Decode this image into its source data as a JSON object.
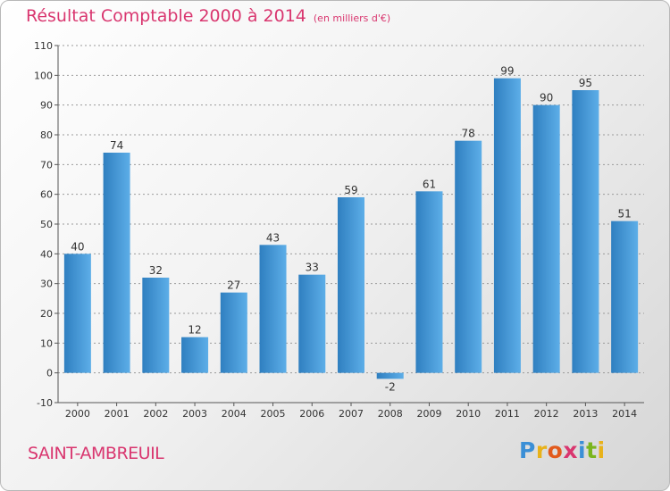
{
  "title": {
    "main": "Résultat Comptable 2000 à 2014",
    "unit": "(en milliers d'€)"
  },
  "town": "SAINT-AMBREUIL",
  "brand": {
    "letters": [
      {
        "ch": "P",
        "color": "#3b8fd6"
      },
      {
        "ch": "r",
        "color": "#e8b21a"
      },
      {
        "ch": "o",
        "color": "#e25a1c"
      },
      {
        "ch": "x",
        "color": "#d9366f"
      },
      {
        "ch": "i",
        "color": "#3b8fd6"
      },
      {
        "ch": "t",
        "color": "#7ab51d"
      },
      {
        "ch": "i",
        "color": "#e8b21a"
      }
    ]
  },
  "colors": {
    "bar_light": "#5daee8",
    "bar_dark": "#2f7fc0",
    "title": "#d9366f",
    "grid": "#9a9a9a"
  },
  "chart_data": {
    "type": "bar",
    "categories": [
      "2000",
      "2001",
      "2002",
      "2003",
      "2004",
      "2005",
      "2006",
      "2007",
      "2008",
      "2009",
      "2010",
      "2011",
      "2012",
      "2013",
      "2014"
    ],
    "values": [
      40,
      74,
      32,
      12,
      27,
      43,
      33,
      59,
      -2,
      61,
      78,
      99,
      90,
      95,
      51
    ],
    "ylim": [
      -10,
      110
    ],
    "yticks": [
      -10,
      0,
      10,
      20,
      30,
      40,
      50,
      60,
      70,
      80,
      90,
      100,
      110
    ],
    "grid": true,
    "data_labels": true
  }
}
